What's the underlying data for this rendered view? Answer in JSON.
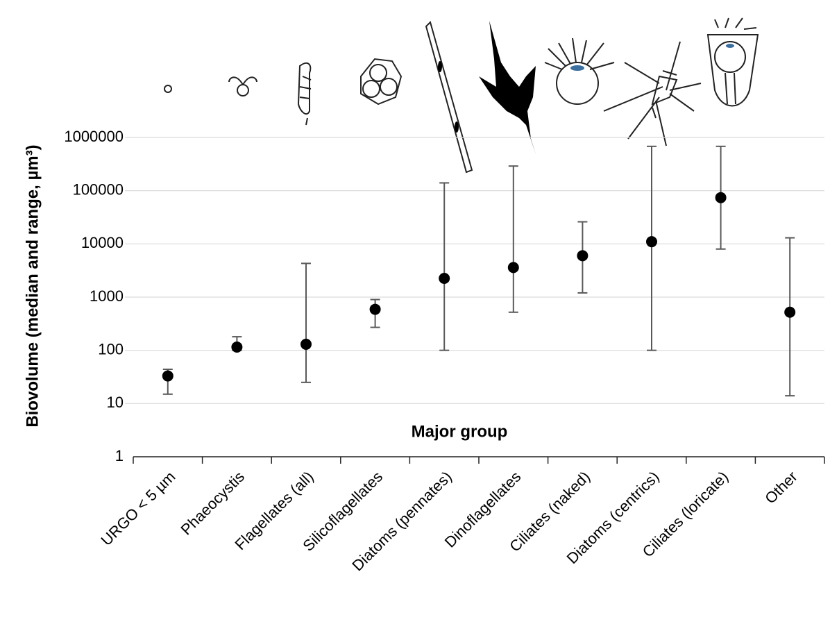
{
  "chart_data": {
    "type": "errorbar",
    "y_label": "Biovolume (median and range, µm³)",
    "x_label": "Major group",
    "categories": [
      "URGO < 5 µm",
      "Phaeocystis",
      "Flagellates (all)",
      "Silicoflagellates",
      "Diatoms (pennates)",
      "Dinoflagellates",
      "Ciliates (naked)",
      "Diatoms (centrics)",
      "Ciliates (loricate)",
      "Other"
    ],
    "values": [
      33,
      115,
      130,
      590,
      2250,
      3600,
      6000,
      11000,
      74000,
      520
    ],
    "low": [
      15,
      100,
      25,
      270,
      100,
      520,
      1200,
      100,
      8000,
      14
    ],
    "high": [
      44,
      180,
      4300,
      900,
      140000,
      290000,
      26000,
      680000,
      680000,
      13000
    ],
    "color": "#000000",
    "error_color": "#595959",
    "log_y": true,
    "ylim": [
      1,
      1000000
    ],
    "yticks": [
      1,
      10,
      100,
      1000,
      10000,
      100000,
      1000000
    ],
    "grid": true
  }
}
